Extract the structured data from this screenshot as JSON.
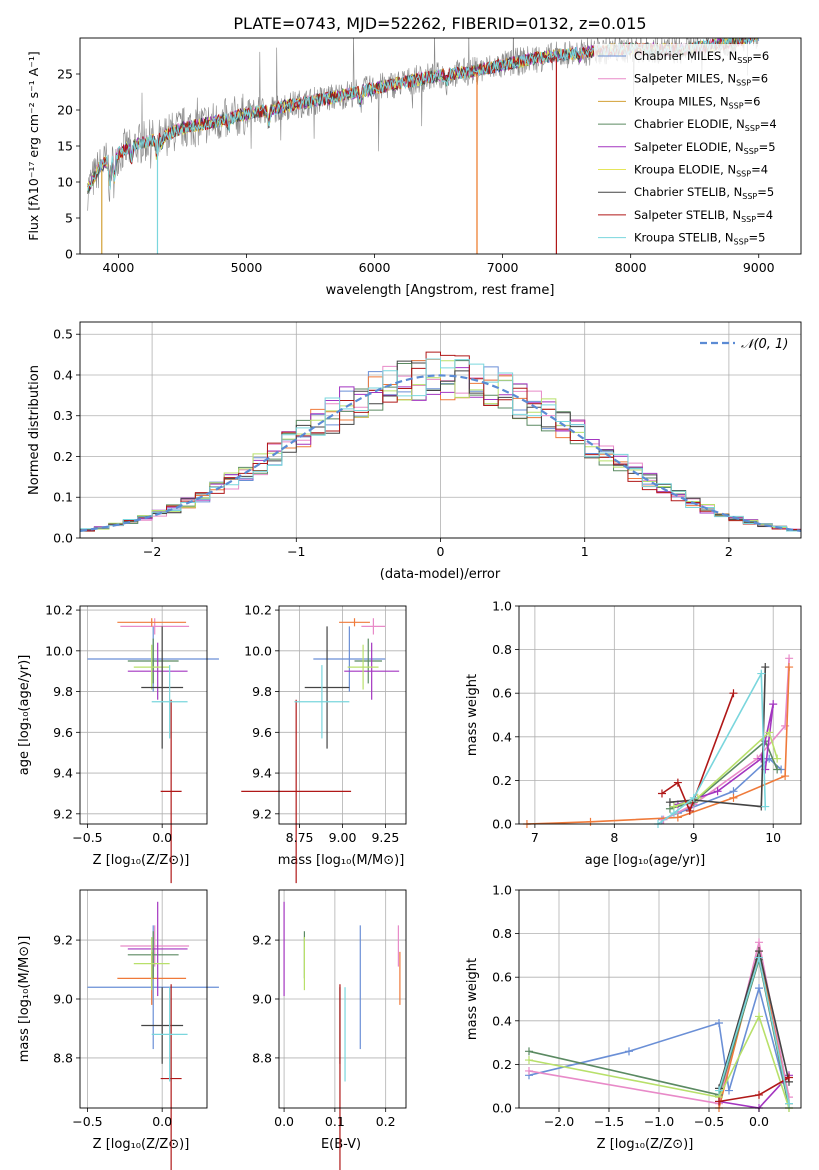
{
  "figure": {
    "title": "PLATE=0743, MJD=52262, FIBERID=0132, z=0.015"
  },
  "colors": {
    "Chabrier MILES": "#6a8fd6",
    "Salpeter MILES": "#e88ac8",
    "Kroupa MILES": "#d2a035",
    "Chabrier ELODIE": "#5b8a62",
    "Salpeter ELODIE": "#a335c0",
    "Kroupa ELODIE": "#e5e55a",
    "Chabrier STELIB": "#444444",
    "Salpeter STELIB": "#b01818",
    "Kroupa STELIB": "#7ad6dd",
    "orange": "#ef7a3a",
    "lime": "#b8e06a",
    "gauss": "#5b8bd4",
    "spec_data": "#888888"
  },
  "chart_data": [
    {
      "id": "spectrum",
      "type": "line",
      "xlabel": "wavelength [Angstrom, rest frame]",
      "ylabel": "Flux [fλ10⁻¹⁷ erg cm⁻² s⁻¹ A⁻¹]",
      "xlim": [
        3700,
        9330
      ],
      "ylim": [
        0,
        30
      ],
      "xticks": [
        "4000",
        "5000",
        "6000",
        "7000",
        "8000",
        "9000"
      ],
      "xtick_values": [
        4000,
        5000,
        6000,
        7000,
        8000,
        9000
      ],
      "yticks": [
        "0",
        "5",
        "10",
        "15",
        "20",
        "25"
      ],
      "ytick_values": [
        0,
        5,
        10,
        15,
        20,
        25
      ],
      "legend_position": "right",
      "continuum": [
        [
          3760,
          9
        ],
        [
          3850,
          12
        ],
        [
          3950,
          13.5
        ],
        [
          4100,
          15
        ],
        [
          4300,
          16
        ],
        [
          4500,
          17.5
        ],
        [
          4800,
          18.5
        ],
        [
          5000,
          19.5
        ],
        [
          5300,
          20.5
        ],
        [
          5600,
          21.5
        ],
        [
          6000,
          23
        ],
        [
          6400,
          24.5
        ],
        [
          6800,
          25.5
        ],
        [
          7200,
          27
        ],
        [
          7600,
          28
        ],
        [
          8000,
          28.5
        ],
        [
          8400,
          28.3
        ],
        [
          8800,
          29.5
        ],
        [
          9000,
          30.5
        ]
      ],
      "series": [
        {
          "name": "Chabrier MILES, N",
          "sub": "SSP",
          "suffix": "=6"
        },
        {
          "name": "Salpeter MILES, N",
          "sub": "SSP",
          "suffix": "=6"
        },
        {
          "name": "Kroupa MILES, N",
          "sub": "SSP",
          "suffix": "=6"
        },
        {
          "name": "Chabrier ELODIE, N",
          "sub": "SSP",
          "suffix": "=4"
        },
        {
          "name": "Salpeter ELODIE, N",
          "sub": "SSP",
          "suffix": "=5"
        },
        {
          "name": "Kroupa ELODIE, N",
          "sub": "SSP",
          "suffix": "=4"
        },
        {
          "name": "Chabrier STELIB, N",
          "sub": "SSP",
          "suffix": "=5"
        },
        {
          "name": "Salpeter STELIB, N",
          "sub": "SSP",
          "suffix": "=4"
        },
        {
          "name": "Kroupa STELIB, N",
          "sub": "SSP",
          "suffix": "=5"
        }
      ]
    },
    {
      "id": "residuals",
      "type": "bar",
      "xlabel": "(data-model)/error",
      "ylabel": "Normed distribution",
      "xlim": [
        -2.5,
        2.5
      ],
      "ylim": [
        0,
        0.53
      ],
      "xticks": [
        "−2",
        "−1",
        "0",
        "1",
        "2"
      ],
      "xtick_values": [
        -2,
        -1,
        0,
        1,
        2
      ],
      "yticks": [
        "0.0",
        "0.1",
        "0.2",
        "0.3",
        "0.4",
        "0.5"
      ],
      "ytick_values": [
        0,
        0.1,
        0.2,
        0.3,
        0.4,
        0.5
      ],
      "legend": "𝒩(0, 1)",
      "legend_position": "top-right",
      "bin_width": 0.1,
      "grid": true
    },
    {
      "id": "age_vs_z",
      "type": "scatter",
      "xlabel": "Z [log₁₀(Z/Z⊙)]",
      "ylabel": "age  [log₁₀(age/yr)]",
      "xlim": [
        -0.55,
        0.3
      ],
      "ylim": [
        9.15,
        10.22
      ],
      "xticks": [
        "−0.5",
        "0.0"
      ],
      "xtick_values": [
        -0.5,
        0.0
      ],
      "yticks": [
        "9.2",
        "9.4",
        "9.6",
        "9.8",
        "10.0",
        "10.2"
      ],
      "ytick_values": [
        9.2,
        9.4,
        9.6,
        9.8,
        10.0,
        10.2
      ],
      "grid": true
    },
    {
      "id": "age_vs_mass",
      "type": "scatter",
      "xlabel": "mass [log₁₀(M/M⊙)]",
      "xlim": [
        8.63,
        9.37
      ],
      "ylim": [
        9.15,
        10.22
      ],
      "xticks": [
        "8.75",
        "9.00",
        "9.25"
      ],
      "xtick_values": [
        8.75,
        9.0,
        9.25
      ],
      "yticks": [
        "9.2",
        "9.4",
        "9.6",
        "9.8",
        "10.0",
        "10.2"
      ],
      "ytick_values": [
        9.2,
        9.4,
        9.6,
        9.8,
        10.0,
        10.2
      ],
      "grid": true
    },
    {
      "id": "weight_vs_age",
      "type": "line",
      "xlabel": "age  [log₁₀(age/yr)]",
      "ylabel": "mass weight",
      "xlim": [
        6.8,
        10.35
      ],
      "ylim": [
        0,
        1
      ],
      "xticks": [
        "7",
        "8",
        "9",
        "10"
      ],
      "xtick_values": [
        7,
        8,
        9,
        10
      ],
      "yticks": [
        "0.0",
        "0.2",
        "0.4",
        "0.6",
        "0.8",
        "1.0"
      ],
      "ytick_values": [
        0,
        0.2,
        0.4,
        0.6,
        0.8,
        1.0
      ],
      "grid": true
    },
    {
      "id": "mass_vs_z",
      "type": "scatter",
      "xlabel": "Z [log₁₀(Z/Z⊙)]",
      "ylabel": "mass [log₁₀(M/M⊙)]",
      "xlim": [
        -0.55,
        0.3
      ],
      "ylim": [
        8.63,
        9.37
      ],
      "xticks": [
        "−0.5",
        "0.0"
      ],
      "xtick_values": [
        -0.5,
        0.0
      ],
      "yticks": [
        "8.8",
        "9.0",
        "9.2"
      ],
      "ytick_values": [
        8.8,
        9.0,
        9.2
      ],
      "grid": true
    },
    {
      "id": "mass_vs_ebv",
      "type": "scatter",
      "xlabel": "E(B-V)",
      "xlim": [
        -0.01,
        0.24
      ],
      "ylim": [
        8.63,
        9.37
      ],
      "xticks": [
        "0.0",
        "0.1",
        "0.2"
      ],
      "xtick_values": [
        0,
        0.1,
        0.2
      ],
      "yticks": [
        "8.8",
        "9.0",
        "9.2"
      ],
      "ytick_values": [
        8.8,
        9.0,
        9.2
      ],
      "grid": true
    },
    {
      "id": "weight_vs_z",
      "type": "line",
      "xlabel": "Z [log₁₀(Z/Z⊙)]",
      "ylabel": "mass weight",
      "xlim": [
        -2.4,
        0.42
      ],
      "ylim": [
        0,
        1
      ],
      "xticks": [
        "−2.0",
        "−1.5",
        "−1.0",
        "−0.5",
        "0.0"
      ],
      "xtick_values": [
        -2.0,
        -1.5,
        -1.0,
        -0.5,
        0.0
      ],
      "yticks": [
        "0.0",
        "0.2",
        "0.4",
        "0.6",
        "0.8",
        "1.0"
      ],
      "ytick_values": [
        0,
        0.2,
        0.4,
        0.6,
        0.8,
        1.0
      ],
      "grid": true
    }
  ],
  "fits": [
    {
      "color": "Chabrier MILES",
      "z": -0.06,
      "zerr": 0.44,
      "age": 9.96,
      "ageErr": 0.16,
      "mass": 9.04,
      "massErr": 0.21,
      "ebv": 0.15
    },
    {
      "color": "Salpeter MILES",
      "z": -0.05,
      "zerr": 0.23,
      "age": 10.12,
      "ageErr": 0.04,
      "mass": 9.18,
      "massErr": 0.07,
      "ebv": 0.225
    },
    {
      "color": "orange",
      "z": -0.07,
      "zerr": 0.23,
      "age": 10.14,
      "ageErr": 0.02,
      "mass": 9.07,
      "massErr": 0.09,
      "ebv": 0.228
    },
    {
      "color": "Chabrier ELODIE",
      "z": -0.06,
      "zerr": 0.17,
      "age": 9.95,
      "ageErr": 0.11,
      "mass": 9.15,
      "massErr": 0.08,
      "ebv": 0.04
    },
    {
      "color": "Salpeter ELODIE",
      "z": -0.03,
      "zerr": 0.2,
      "age": 9.9,
      "ageErr": 0.14,
      "mass": 9.17,
      "massErr": 0.16,
      "ebv": 0.0
    },
    {
      "color": "lime",
      "z": -0.07,
      "zerr": 0.12,
      "age": 9.92,
      "ageErr": 0.11,
      "mass": 9.12,
      "massErr": 0.09,
      "ebv": 0.04
    },
    {
      "color": "Chabrier STELIB",
      "z": 0.0,
      "zerr": 0.14,
      "age": 9.82,
      "ageErr": 0.3,
      "mass": 8.91,
      "massErr": 0.13,
      "ebv": 0.11
    },
    {
      "color": "Salpeter STELIB",
      "z": 0.06,
      "zerr": 0.07,
      "age": 9.31,
      "ageErr": 0.45,
      "mass": 8.73,
      "massErr": 0.32,
      "ebv": 0.11
    },
    {
      "color": "Kroupa STELIB",
      "z": 0.05,
      "zerr": 0.12,
      "age": 9.75,
      "ageErr": 0.18,
      "mass": 8.88,
      "massErr": 0.16,
      "ebv": 0.12
    }
  ],
  "weight_vs_age_series": [
    {
      "color": "Chabrier MILES",
      "points": [
        [
          8.6,
          0.02
        ],
        [
          8.8,
          0.05
        ],
        [
          9.5,
          0.15
        ],
        [
          9.95,
          0.3
        ],
        [
          10.1,
          0.25
        ]
      ]
    },
    {
      "color": "Salpeter MILES",
      "points": [
        [
          8.62,
          0.02
        ],
        [
          9.0,
          0.09
        ],
        [
          9.8,
          0.3
        ],
        [
          10.15,
          0.45
        ],
        [
          10.2,
          0.76
        ]
      ]
    },
    {
      "color": "orange",
      "points": [
        [
          6.9,
          0.0
        ],
        [
          7.7,
          0.01
        ],
        [
          8.8,
          0.03
        ],
        [
          9.5,
          0.12
        ],
        [
          10.15,
          0.22
        ],
        [
          10.2,
          0.72
        ]
      ]
    },
    {
      "color": "Chabrier ELODIE",
      "points": [
        [
          8.7,
          0.07
        ],
        [
          9.0,
          0.1
        ],
        [
          9.9,
          0.38
        ],
        [
          10.05,
          0.25
        ]
      ]
    },
    {
      "color": "Salpeter ELODIE",
      "points": [
        [
          8.8,
          0.09
        ],
        [
          9.3,
          0.15
        ],
        [
          9.85,
          0.3
        ],
        [
          10.0,
          0.55
        ],
        [
          9.9,
          0.25
        ]
      ]
    },
    {
      "color": "lime",
      "points": [
        [
          8.75,
          0.08
        ],
        [
          9.05,
          0.12
        ],
        [
          9.95,
          0.42
        ],
        [
          10.05,
          0.3
        ]
      ]
    },
    {
      "color": "Chabrier STELIB",
      "points": [
        [
          8.7,
          0.1
        ],
        [
          9.0,
          0.11
        ],
        [
          9.85,
          0.08
        ],
        [
          9.9,
          0.72
        ]
      ]
    },
    {
      "color": "Salpeter STELIB",
      "points": [
        [
          8.6,
          0.14
        ],
        [
          8.8,
          0.19
        ],
        [
          8.95,
          0.06
        ],
        [
          9.5,
          0.6
        ]
      ]
    },
    {
      "color": "Kroupa STELIB",
      "points": [
        [
          8.55,
          0.0
        ],
        [
          8.75,
          0.05
        ],
        [
          9.0,
          0.12
        ],
        [
          9.85,
          0.69
        ],
        [
          9.9,
          0.08
        ]
      ]
    }
  ],
  "weight_vs_z_series": [
    {
      "color": "Chabrier MILES",
      "points": [
        [
          -2.3,
          0.15
        ],
        [
          -1.3,
          0.26
        ],
        [
          -0.4,
          0.39
        ],
        [
          -0.3,
          0.08
        ],
        [
          0.0,
          0.55
        ],
        [
          0.3,
          0.02
        ]
      ]
    },
    {
      "color": "Salpeter MILES",
      "points": [
        [
          -2.3,
          0.17
        ],
        [
          -0.4,
          0.02
        ],
        [
          0.0,
          0.76
        ],
        [
          0.3,
          0.05
        ]
      ]
    },
    {
      "color": "orange",
      "points": [
        [
          -0.4,
          0.0
        ],
        [
          0.0,
          0.72
        ],
        [
          0.3,
          0.02
        ]
      ]
    },
    {
      "color": "Chabrier ELODIE",
      "points": [
        [
          -2.3,
          0.26
        ],
        [
          -0.4,
          0.06
        ],
        [
          0.0,
          0.68
        ],
        [
          0.3,
          0.0
        ]
      ]
    },
    {
      "color": "Salpeter ELODIE",
      "points": [
        [
          -0.4,
          0.03
        ],
        [
          0.0,
          0.0
        ],
        [
          0.3,
          0.15
        ]
      ]
    },
    {
      "color": "lime",
      "points": [
        [
          -2.3,
          0.22
        ],
        [
          -0.4,
          0.05
        ],
        [
          0.0,
          0.42
        ],
        [
          0.3,
          0.0
        ]
      ]
    },
    {
      "color": "Chabrier STELIB",
      "points": [
        [
          -0.4,
          0.09
        ],
        [
          0.0,
          0.72
        ],
        [
          0.3,
          0.12
        ]
      ]
    },
    {
      "color": "Salpeter STELIB",
      "points": [
        [
          -0.4,
          0.03
        ],
        [
          0.0,
          0.06
        ],
        [
          0.3,
          0.14
        ]
      ]
    },
    {
      "color": "Kroupa STELIB",
      "points": [
        [
          -0.4,
          0.08
        ],
        [
          0.0,
          0.69
        ],
        [
          0.3,
          0.02
        ]
      ]
    }
  ]
}
